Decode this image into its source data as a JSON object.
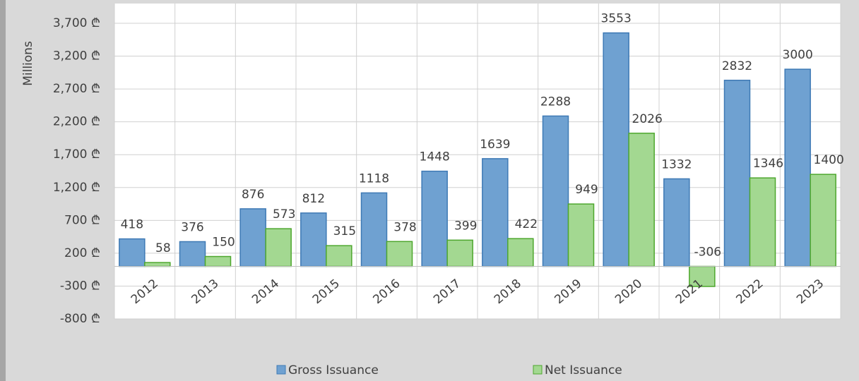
{
  "chart_data": {
    "type": "bar",
    "y_axis_label": "Millions",
    "categories": [
      "2012",
      "2013",
      "2014",
      "2015",
      "2016",
      "2017",
      "2018",
      "2019",
      "2020",
      "2021",
      "2022",
      "2023"
    ],
    "series": [
      {
        "name": "Gross Issuance",
        "color": "#6fa1d1",
        "values": [
          418,
          376,
          876,
          812,
          1118,
          1448,
          1639,
          2288,
          3553,
          1332,
          2832,
          3000
        ]
      },
      {
        "name": "Net Issuance",
        "color": "#a3d891",
        "values": [
          58,
          150,
          573,
          315,
          378,
          399,
          422,
          949,
          2026,
          -306,
          1346,
          1400
        ]
      }
    ],
    "ylim": [
      -800,
      4000
    ],
    "yticks": [
      {
        "value": -800,
        "label": "-800 ₾"
      },
      {
        "value": -300,
        "label": "-300 ₾"
      },
      {
        "value": 200,
        "label": "200 ₾"
      },
      {
        "value": 700,
        "label": "700 ₾"
      },
      {
        "value": 1200,
        "label": "1,200 ₾"
      },
      {
        "value": 1700,
        "label": "1,700 ₾"
      },
      {
        "value": 2200,
        "label": "2,200 ₾"
      },
      {
        "value": 2700,
        "label": "2,700 ₾"
      },
      {
        "value": 3200,
        "label": "3,200 ₾"
      },
      {
        "value": 3700,
        "label": "3,700 ₾"
      }
    ],
    "grid": true,
    "legend": "bottom"
  }
}
